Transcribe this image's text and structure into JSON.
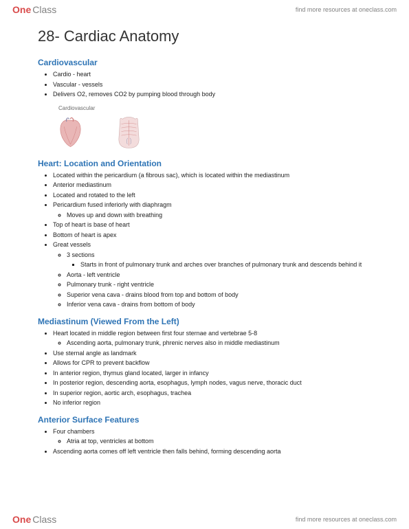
{
  "brand": {
    "part1": "One",
    "part2": "Class"
  },
  "header_link": "find more resources at oneclass.com",
  "footer_link": "find more resources at oneclass.com",
  "title": "28- Cardiac Anatomy",
  "colors": {
    "heading": "#2e74b5",
    "body_text": "#222222",
    "logo_red": "#d94b4b",
    "logo_gray": "#808080",
    "background": "#ffffff"
  },
  "figure": {
    "label": "Cardiovascular"
  },
  "sections": [
    {
      "heading": "Cardiovascular",
      "items": [
        {
          "text": "Cardio - heart"
        },
        {
          "text": "Vascular - vessels"
        },
        {
          "text": "Delivers O2, removes CO2 by pumping blood through body"
        }
      ]
    },
    {
      "heading": "Heart: Location and Orientation",
      "items": [
        {
          "text": "Located within the pericardium (a fibrous sac), which is located within the mediastinum"
        },
        {
          "text": "Anterior mediastinum"
        },
        {
          "text": "Located and rotated to the left"
        },
        {
          "text": "Pericardium fused inferiorly with diaphragm",
          "children": [
            {
              "text": "Moves up and down with breathing"
            }
          ]
        },
        {
          "text": "Top of heart is base of heart"
        },
        {
          "text": "Bottom of heart is apex"
        },
        {
          "text": "Great vessels",
          "children": [
            {
              "text": "3 sections",
              "children": [
                {
                  "text": "Starts in front of pulmonary trunk and arches over branches of pulmonary trunk and descends behind it"
                }
              ]
            },
            {
              "text": "Aorta - left ventricle"
            },
            {
              "text": "Pulmonary trunk - right ventricle"
            },
            {
              "text": "Superior vena cava - drains blood from top and bottom of body"
            },
            {
              "text": "Inferior vena cava - drains from bottom of body"
            }
          ]
        }
      ]
    },
    {
      "heading": "Mediastinum (Viewed From the Left)",
      "items": [
        {
          "text": "Heart located in middle region between first four sternae and vertebrae 5-8",
          "children": [
            {
              "text": "Ascending aorta, pulmonary trunk, phrenic nerves also in middle mediastinum"
            }
          ]
        },
        {
          "text": "Use sternal angle as landmark"
        },
        {
          "text": "Allows for CPR to prevent backflow"
        },
        {
          "text": "In anterior region, thymus gland located, larger in infancy"
        },
        {
          "text": "In posterior region, descending aorta, esophagus, lymph nodes, vagus nerve, thoracic duct"
        },
        {
          "text": "In superior region, aortic arch, esophagus, trachea"
        },
        {
          "text": "No inferior region"
        }
      ]
    },
    {
      "heading": "Anterior Surface Features",
      "items": [
        {
          "text": "Four chambers",
          "children": [
            {
              "text": "Atria at top, ventricles at bottom"
            }
          ]
        },
        {
          "text": "Ascending aorta comes off left ventricle then falls behind, forming descending aorta"
        }
      ]
    }
  ]
}
